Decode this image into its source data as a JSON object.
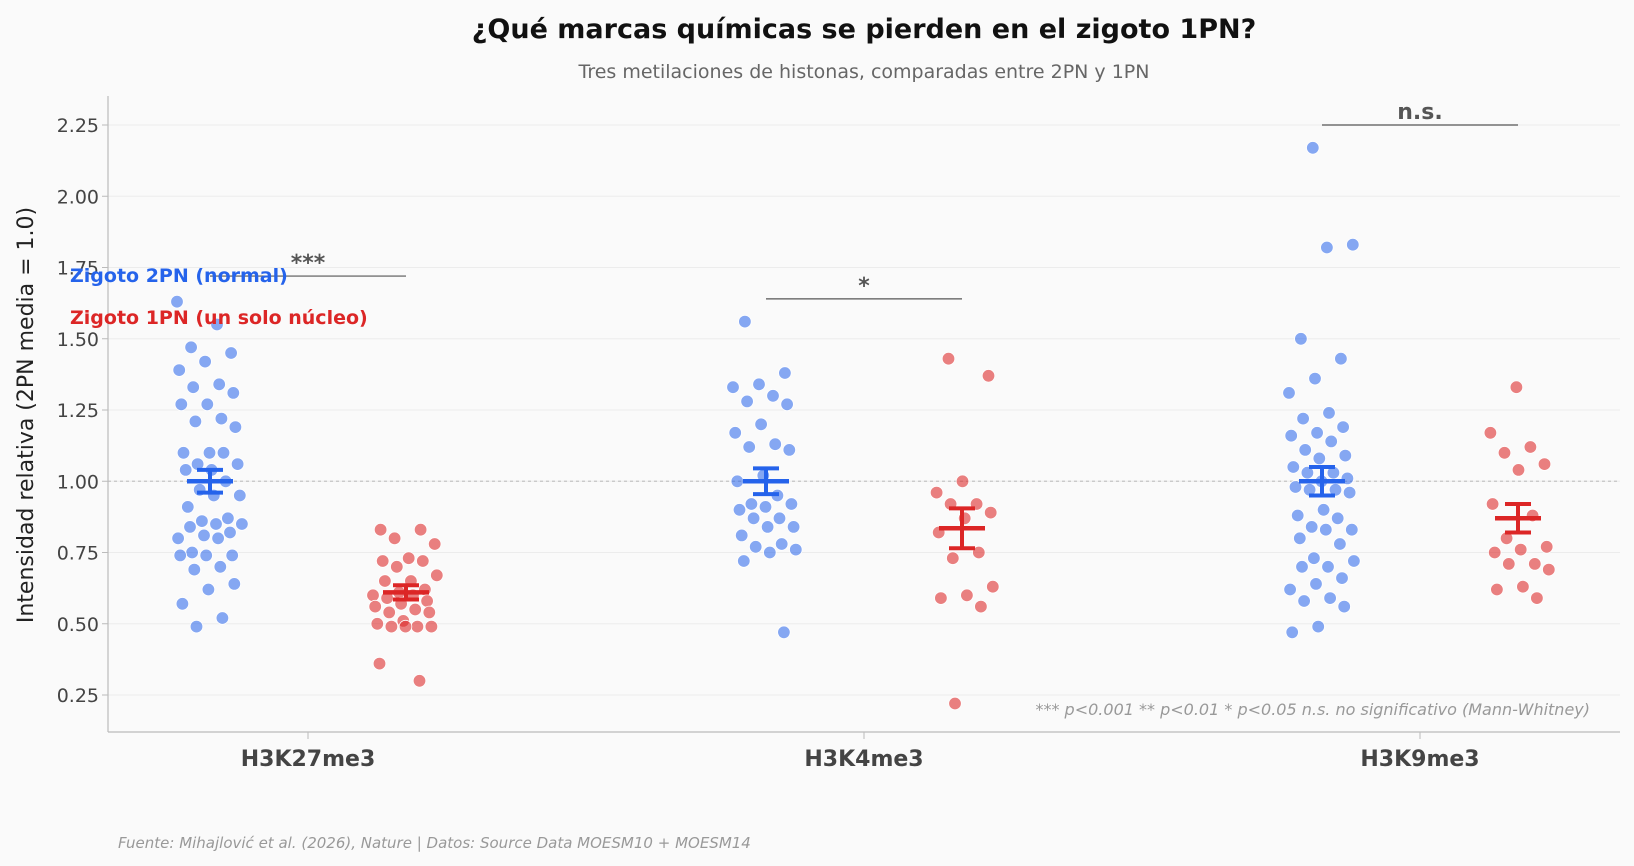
{
  "chart_data": {
    "type": "scatter",
    "title": "¿Qué marcas químicas se pierden en el zigoto 1PN?",
    "subtitle": "Tres metilaciones de histonas, comparadas entre 2PN y 1PN",
    "ylabel": "Intensidad relativa (2PN media = 1.0)",
    "ylim": [
      0.12,
      2.35
    ],
    "yticks": [
      "0.25",
      "0.50",
      "0.75",
      "1.00",
      "1.25",
      "1.50",
      "1.75",
      "2.00",
      "2.25"
    ],
    "reference_line": 1.0,
    "grid": "horizontal",
    "categories": [
      "H3K27me3",
      "H3K4me3",
      "H3K9me3"
    ],
    "series": [
      {
        "name": "Zigoto 2PN (normal)",
        "color": "#2563eb",
        "values": [
          [
            1.63,
            1.55,
            1.47,
            1.45,
            1.42,
            1.39,
            1.34,
            1.33,
            1.31,
            1.27,
            1.27,
            1.22,
            1.21,
            1.19,
            1.1,
            1.1,
            1.1,
            1.06,
            1.06,
            1.04,
            1.04,
            1.0,
            0.97,
            0.95,
            0.95,
            0.91,
            0.87,
            0.86,
            0.85,
            0.85,
            0.84,
            0.82,
            0.81,
            0.8,
            0.8,
            0.75,
            0.74,
            0.74,
            0.74,
            0.7,
            0.69,
            0.64,
            0.62,
            0.57,
            0.52,
            0.49
          ],
          [
            1.56,
            1.38,
            1.34,
            1.33,
            1.3,
            1.28,
            1.27,
            1.2,
            1.17,
            1.13,
            1.12,
            1.11,
            1.02,
            1.0,
            0.95,
            0.92,
            0.92,
            0.91,
            0.9,
            0.87,
            0.87,
            0.84,
            0.84,
            0.81,
            0.78,
            0.77,
            0.76,
            0.75,
            0.72,
            0.47
          ],
          [
            2.17,
            1.83,
            1.82,
            1.5,
            1.43,
            1.36,
            1.31,
            1.24,
            1.22,
            1.19,
            1.17,
            1.16,
            1.14,
            1.11,
            1.09,
            1.08,
            1.05,
            1.03,
            1.03,
            1.01,
            1.0,
            0.98,
            0.97,
            0.97,
            0.96,
            0.9,
            0.88,
            0.87,
            0.84,
            0.83,
            0.83,
            0.8,
            0.78,
            0.73,
            0.72,
            0.7,
            0.7,
            0.66,
            0.64,
            0.62,
            0.59,
            0.58,
            0.56,
            0.49,
            0.47
          ]
        ],
        "mean": [
          1.0,
          1.0,
          1.0
        ],
        "sem": [
          0.04,
          0.045,
          0.05
        ]
      },
      {
        "name": "Zigoto 1PN (un solo núcleo)",
        "color": "#dc2626",
        "values": [
          [
            0.83,
            0.83,
            0.8,
            0.78,
            0.73,
            0.72,
            0.72,
            0.7,
            0.67,
            0.65,
            0.65,
            0.62,
            0.61,
            0.6,
            0.6,
            0.59,
            0.58,
            0.57,
            0.56,
            0.55,
            0.54,
            0.54,
            0.51,
            0.5,
            0.49,
            0.49,
            0.49,
            0.49,
            0.36,
            0.3
          ],
          [
            1.43,
            1.37,
            1.0,
            0.96,
            0.92,
            0.92,
            0.89,
            0.87,
            0.82,
            0.75,
            0.73,
            0.63,
            0.6,
            0.59,
            0.56,
            0.22
          ],
          [
            1.33,
            1.17,
            1.12,
            1.1,
            1.06,
            1.04,
            0.92,
            0.88,
            0.8,
            0.77,
            0.76,
            0.75,
            0.71,
            0.71,
            0.69,
            0.63,
            0.62,
            0.59
          ]
        ],
        "mean": [
          0.61,
          0.835,
          0.87
        ],
        "sem": [
          0.025,
          0.07,
          0.05
        ]
      }
    ],
    "significance": [
      {
        "category": "H3K27me3",
        "label": "***",
        "y": 1.72
      },
      {
        "category": "H3K4me3",
        "label": "*",
        "y": 1.64
      },
      {
        "category": "H3K9me3",
        "label": "n.s.",
        "y": 2.25
      }
    ],
    "legend": "top-left",
    "note": "*** p<0.001  ** p<0.01  * p<0.05  n.s. no significativo (Mann-Whitney)",
    "source": "Fuente: Mihajlović et al. (2026), Nature | Datos: Source Data MOESM10 + MOESM14"
  }
}
